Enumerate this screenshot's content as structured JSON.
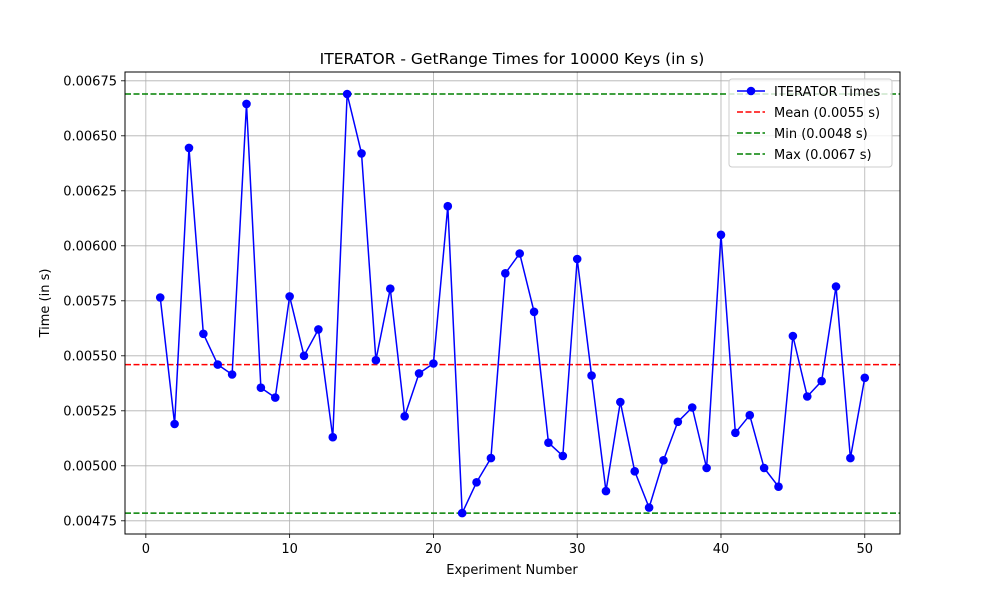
{
  "chart_data": {
    "type": "line",
    "title": "ITERATOR - GetRange Times for 10000 Keys (in s)",
    "xlabel": "Experiment Number",
    "ylabel": "Time (in s)",
    "xlim": [
      -1.45,
      52.45
    ],
    "ylim": [
      0.00469,
      0.00679
    ],
    "xticks": [
      0,
      10,
      20,
      30,
      40,
      50
    ],
    "yticks": [
      0.00475,
      0.005,
      0.00525,
      0.0055,
      0.00575,
      0.006,
      0.00625,
      0.0065,
      0.00675
    ],
    "ytick_labels": [
      "0.00475",
      "0.00500",
      "0.00525",
      "0.00550",
      "0.00575",
      "0.00600",
      "0.00625",
      "0.00650",
      "0.00675"
    ],
    "grid": true,
    "legend_position": "top-right",
    "series": [
      {
        "name": "ITERATOR Times",
        "color": "#0000ff",
        "marker": "circle",
        "x": [
          1,
          2,
          3,
          4,
          5,
          6,
          7,
          8,
          9,
          10,
          11,
          12,
          13,
          14,
          15,
          16,
          17,
          18,
          19,
          20,
          21,
          22,
          23,
          24,
          25,
          26,
          27,
          28,
          29,
          30,
          31,
          32,
          33,
          34,
          35,
          36,
          37,
          38,
          39,
          40,
          41,
          42,
          43,
          44,
          45,
          46,
          47,
          48,
          49,
          50
        ],
        "y": [
          0.005765,
          0.00519,
          0.006445,
          0.0056,
          0.00546,
          0.005415,
          0.006645,
          0.005355,
          0.00531,
          0.00577,
          0.0055,
          0.00562,
          0.00513,
          0.00669,
          0.00642,
          0.00548,
          0.005805,
          0.005225,
          0.00542,
          0.005465,
          0.00618,
          0.004785,
          0.004925,
          0.005035,
          0.005875,
          0.005965,
          0.0057,
          0.005105,
          0.005045,
          0.00594,
          0.00541,
          0.004885,
          0.00529,
          0.004975,
          0.00481,
          0.005025,
          0.0052,
          0.005265,
          0.00499,
          0.00605,
          0.00515,
          0.00523,
          0.00499,
          0.004905,
          0.00559,
          0.005315,
          0.005385,
          0.005815,
          0.005035,
          0.0054
        ]
      }
    ],
    "reference_lines": [
      {
        "name": "Mean (0.0055 s)",
        "value": 0.00546,
        "color": "#ff0000",
        "style": "dashed"
      },
      {
        "name": "Min (0.0048 s)",
        "value": 0.004785,
        "color": "#008000",
        "style": "dashed"
      },
      {
        "name": "Max (0.0067 s)",
        "value": 0.00669,
        "color": "#008000",
        "style": "dashed"
      }
    ]
  }
}
